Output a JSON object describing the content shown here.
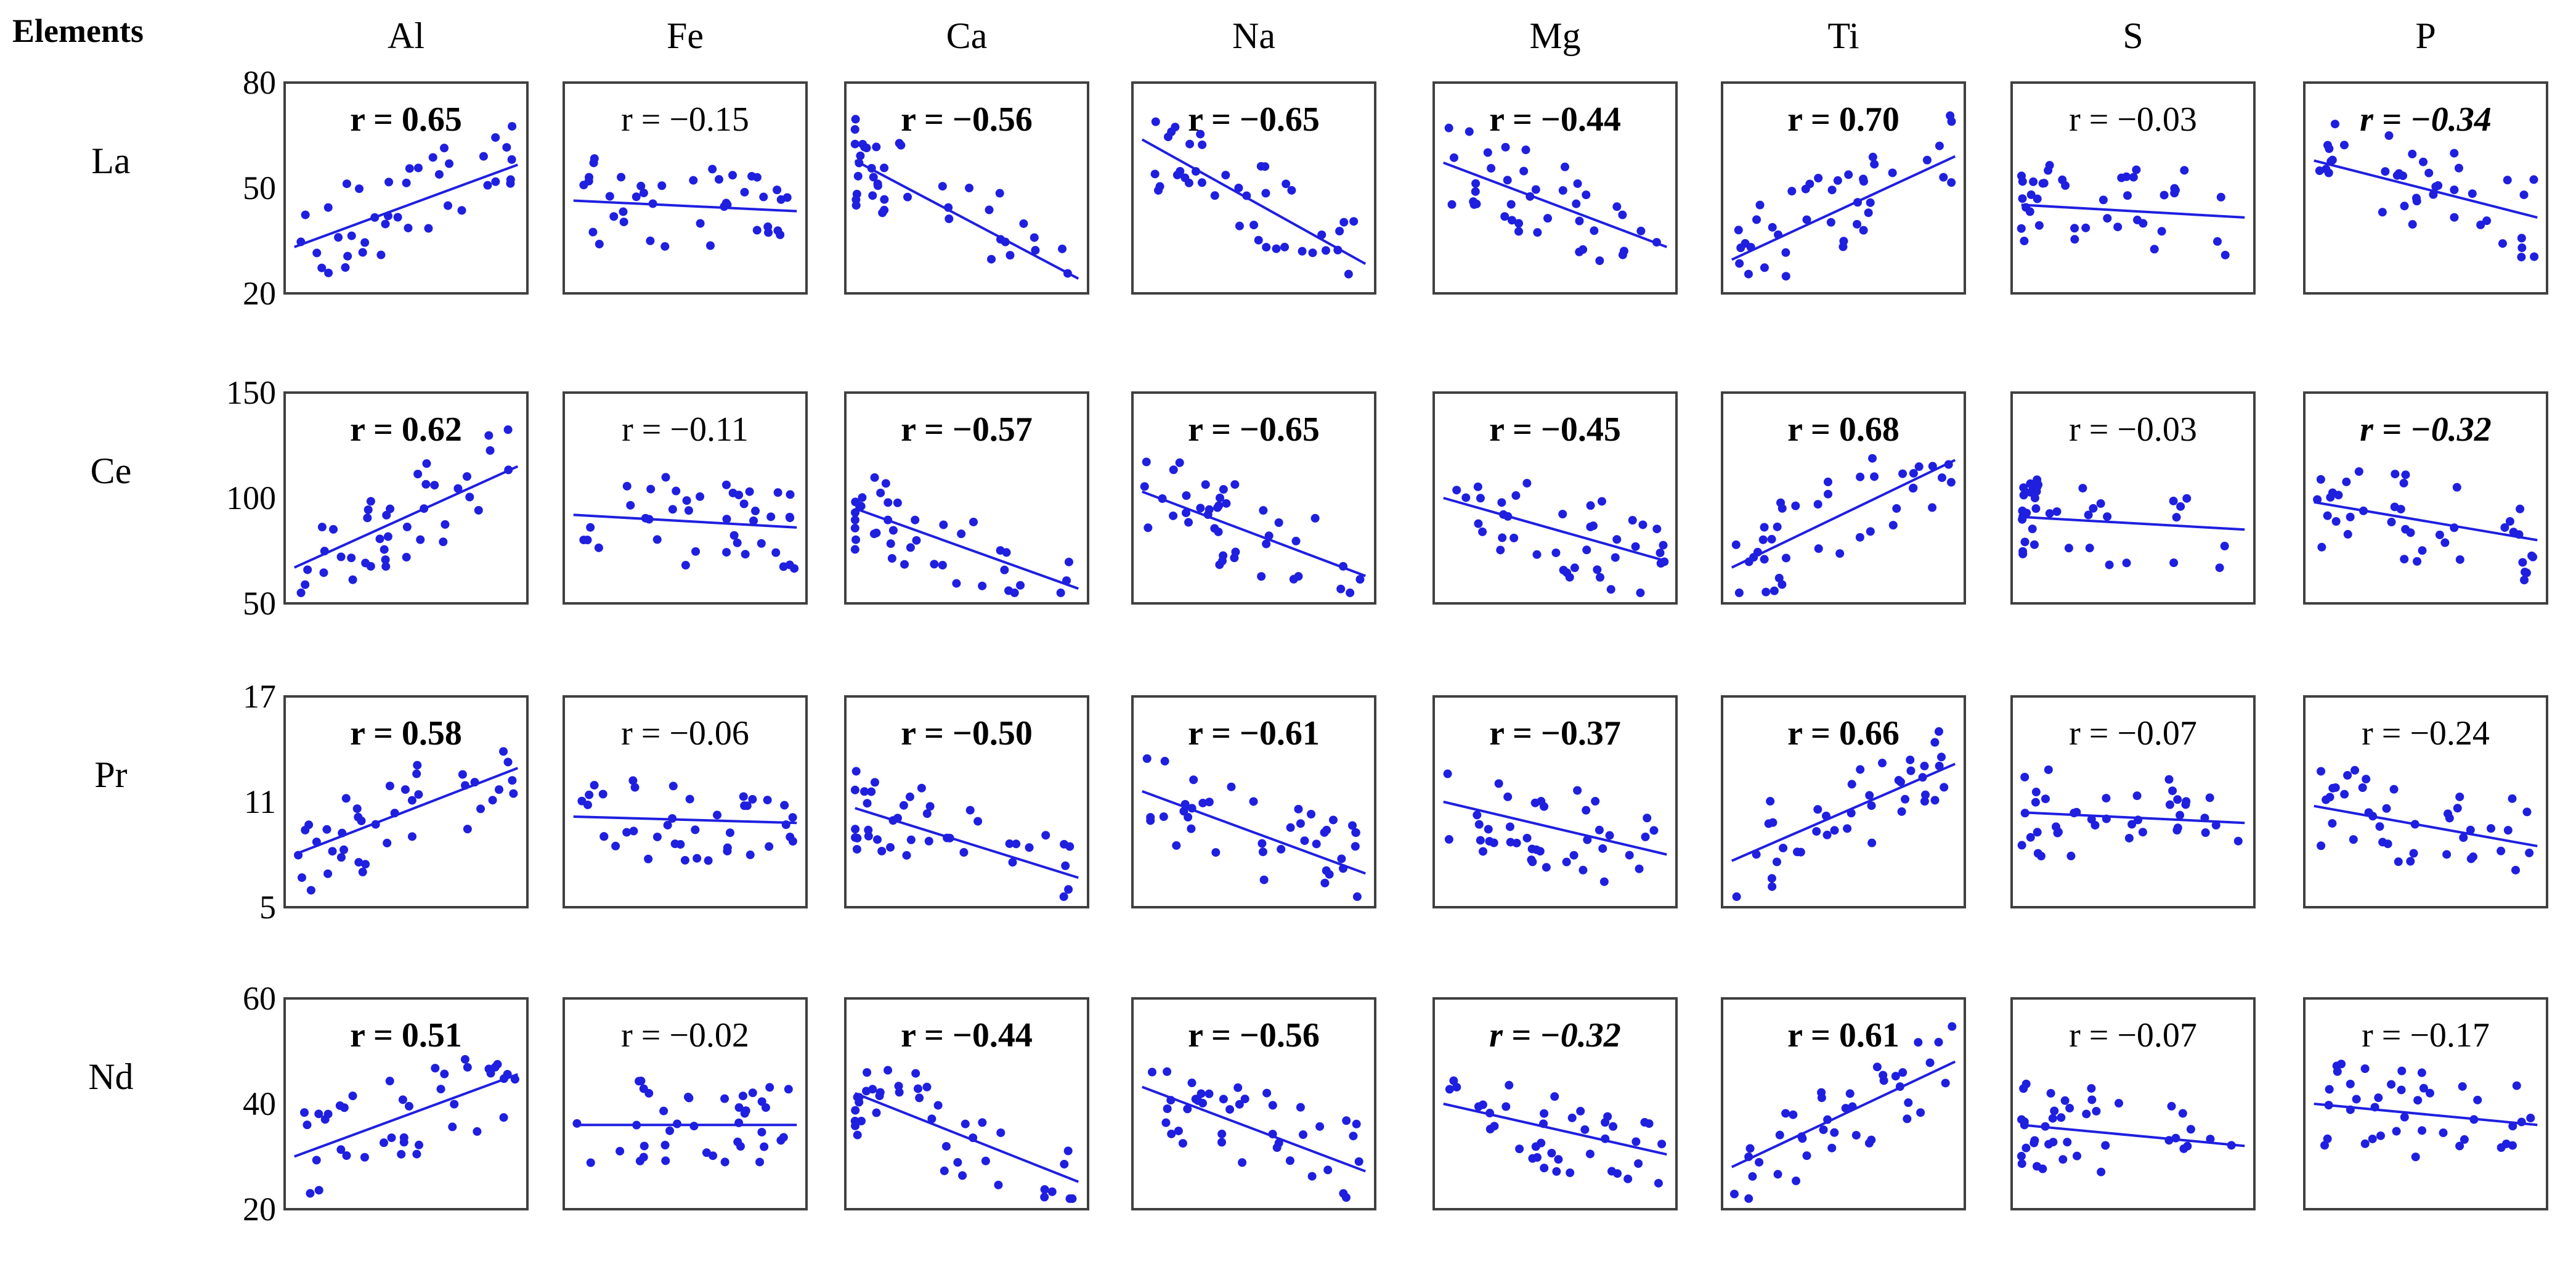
{
  "chart_data": {
    "type": "scatter",
    "title": "",
    "corner_label": "Elements",
    "columns": [
      "Al",
      "Fe",
      "Ca",
      "Na",
      "Mg",
      "Ti",
      "S",
      "P"
    ],
    "rows": [
      {
        "name": "La",
        "ylim": [
          20,
          80
        ],
        "yticks": [
          "80",
          "50",
          "20"
        ]
      },
      {
        "name": "Ce",
        "ylim": [
          50,
          150
        ],
        "yticks": [
          "150",
          "100",
          "50"
        ]
      },
      {
        "name": "Pr",
        "ylim": [
          5,
          17
        ],
        "yticks": [
          "17",
          "11",
          "5"
        ]
      },
      {
        "name": "Nd",
        "ylim": [
          20,
          60
        ],
        "yticks": [
          "60",
          "40",
          "20"
        ]
      }
    ],
    "series_color": "#1f1fe0",
    "panels": [
      [
        {
          "r": "r = 0.65",
          "bold": true,
          "italic": false,
          "fit": [
            0.04,
            0.22,
            0.96,
            0.61
          ]
        },
        {
          "r": "r = −0.15",
          "bold": false,
          "italic": false,
          "fit": [
            0.04,
            0.44,
            0.96,
            0.39
          ]
        },
        {
          "r": "r = −0.56",
          "bold": true,
          "italic": false,
          "fit": [
            0.04,
            0.63,
            0.96,
            0.07
          ]
        },
        {
          "r": "r = −0.65",
          "bold": true,
          "italic": false,
          "fit": [
            0.04,
            0.73,
            0.96,
            0.14
          ]
        },
        {
          "r": "r = −0.44",
          "bold": true,
          "italic": false,
          "fit": [
            0.04,
            0.62,
            0.96,
            0.22
          ]
        },
        {
          "r": "r = 0.70",
          "bold": true,
          "italic": false,
          "fit": [
            0.04,
            0.16,
            0.96,
            0.65
          ]
        },
        {
          "r": "r = −0.03",
          "bold": false,
          "italic": false,
          "fit": [
            0.04,
            0.42,
            0.96,
            0.36
          ]
        },
        {
          "r": "r = −0.34",
          "bold": true,
          "italic": true,
          "fit": [
            0.04,
            0.63,
            0.96,
            0.36
          ]
        }
      ],
      [
        {
          "r": "r = 0.62",
          "bold": true,
          "italic": false,
          "fit": [
            0.04,
            0.17,
            0.96,
            0.65
          ]
        },
        {
          "r": "r = −0.11",
          "bold": false,
          "italic": false,
          "fit": [
            0.04,
            0.42,
            0.96,
            0.36
          ]
        },
        {
          "r": "r = −0.57",
          "bold": true,
          "italic": false,
          "fit": [
            0.04,
            0.45,
            0.96,
            0.07
          ]
        },
        {
          "r": "r = −0.65",
          "bold": true,
          "italic": false,
          "fit": [
            0.04,
            0.53,
            0.96,
            0.13
          ]
        },
        {
          "r": "r = −0.45",
          "bold": true,
          "italic": false,
          "fit": [
            0.04,
            0.5,
            0.96,
            0.2
          ]
        },
        {
          "r": "r = 0.68",
          "bold": true,
          "italic": false,
          "fit": [
            0.04,
            0.17,
            0.96,
            0.68
          ]
        },
        {
          "r": "r = −0.03",
          "bold": false,
          "italic": false,
          "fit": [
            0.04,
            0.41,
            0.96,
            0.35
          ]
        },
        {
          "r": "r = −0.32",
          "bold": true,
          "italic": true,
          "fit": [
            0.04,
            0.48,
            0.96,
            0.3
          ]
        }
      ],
      [
        {
          "r": "r = 0.58",
          "bold": true,
          "italic": false,
          "fit": [
            0.04,
            0.25,
            0.96,
            0.66
          ]
        },
        {
          "r": "r = −0.06",
          "bold": false,
          "italic": false,
          "fit": [
            0.04,
            0.43,
            0.96,
            0.4
          ]
        },
        {
          "r": "r = −0.50",
          "bold": true,
          "italic": false,
          "fit": [
            0.04,
            0.47,
            0.96,
            0.14
          ]
        },
        {
          "r": "r = −0.61",
          "bold": true,
          "italic": false,
          "fit": [
            0.04,
            0.55,
            0.96,
            0.16
          ]
        },
        {
          "r": "r = −0.37",
          "bold": true,
          "italic": false,
          "fit": [
            0.04,
            0.5,
            0.96,
            0.25
          ]
        },
        {
          "r": "r = 0.66",
          "bold": true,
          "italic": false,
          "fit": [
            0.04,
            0.22,
            0.96,
            0.68
          ]
        },
        {
          "r": "r = −0.07",
          "bold": false,
          "italic": false,
          "fit": [
            0.04,
            0.45,
            0.96,
            0.4
          ]
        },
        {
          "r": "r = −0.24",
          "bold": false,
          "italic": false,
          "fit": [
            0.04,
            0.48,
            0.96,
            0.29
          ]
        }
      ],
      [
        {
          "r": "r = 0.51",
          "bold": true,
          "italic": false,
          "fit": [
            0.04,
            0.25,
            0.96,
            0.64
          ]
        },
        {
          "r": "r = −0.02",
          "bold": false,
          "italic": false,
          "fit": [
            0.04,
            0.4,
            0.96,
            0.4
          ]
        },
        {
          "r": "r = −0.44",
          "bold": true,
          "italic": false,
          "fit": [
            0.04,
            0.55,
            0.96,
            0.13
          ]
        },
        {
          "r": "r = −0.56",
          "bold": true,
          "italic": false,
          "fit": [
            0.04,
            0.58,
            0.96,
            0.18
          ]
        },
        {
          "r": "r = −0.32",
          "bold": true,
          "italic": true,
          "fit": [
            0.04,
            0.5,
            0.96,
            0.26
          ]
        },
        {
          "r": "r = 0.61",
          "bold": true,
          "italic": false,
          "fit": [
            0.04,
            0.2,
            0.96,
            0.7
          ]
        },
        {
          "r": "r = −0.07",
          "bold": false,
          "italic": false,
          "fit": [
            0.04,
            0.4,
            0.96,
            0.3
          ]
        },
        {
          "r": "r = −0.17",
          "bold": false,
          "italic": false,
          "fit": [
            0.04,
            0.5,
            0.96,
            0.4
          ]
        }
      ]
    ]
  }
}
